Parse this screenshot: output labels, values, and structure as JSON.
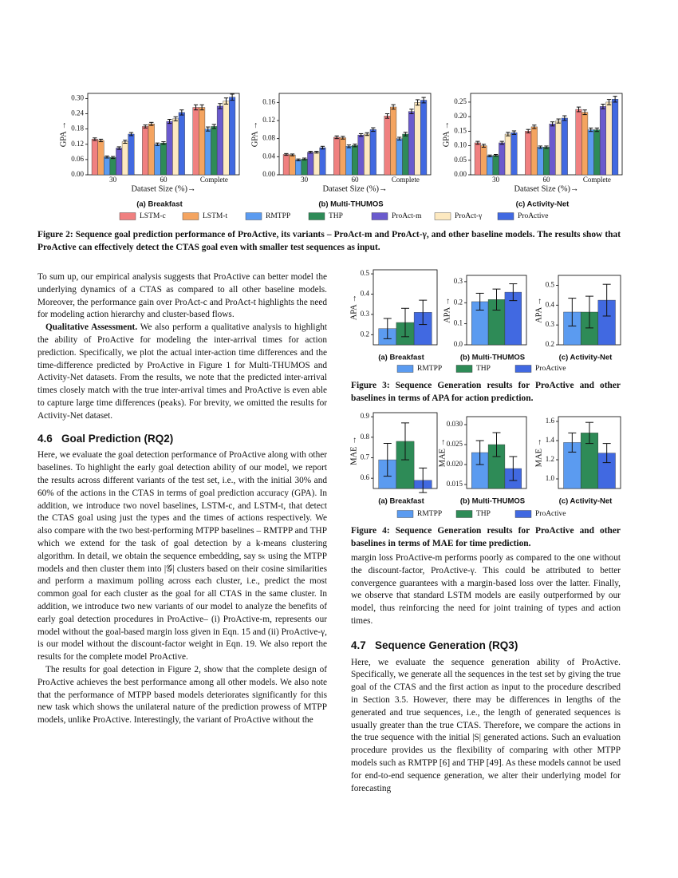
{
  "figure2": {
    "series_names": [
      "LSTM-c",
      "LSTM-t",
      "RMTPP",
      "THP",
      "ProAct-m",
      "ProAct-γ",
      "ProActive"
    ],
    "colors": [
      "#f08080",
      "#f4a460",
      "#5b9bf0",
      "#2e8b57",
      "#6a5acd",
      "#fde9c0",
      "#4169e1"
    ],
    "charts": [
      {
        "type": "bar",
        "subtitle": "(a) Breakfast",
        "ylabel": "GPA →",
        "xlabel": "Dataset Size (%)→",
        "categories": [
          "30",
          "60",
          "Complete"
        ],
        "ylim": [
          0,
          0.32
        ],
        "yticks": [
          {
            "value": 0,
            "label": "0.00"
          },
          {
            "value": 0.06,
            "label": "0.06"
          },
          {
            "value": 0.12,
            "label": "0.12"
          },
          {
            "value": 0.18,
            "label": "0.18"
          },
          {
            "value": 0.24,
            "label": "0.24"
          },
          {
            "value": 0.3,
            "label": "0.30"
          }
        ],
        "series": [
          {
            "values": [
              0.14,
              0.19,
              0.265
            ],
            "errors": [
              0.005,
              0.006,
              0.01
            ]
          },
          {
            "values": [
              0.135,
              0.2,
              0.265
            ],
            "errors": [
              0.005,
              0.006,
              0.01
            ]
          },
          {
            "values": [
              0.07,
              0.12,
              0.18
            ],
            "errors": [
              0.004,
              0.005,
              0.008
            ]
          },
          {
            "values": [
              0.068,
              0.125,
              0.19
            ],
            "errors": [
              0.004,
              0.005,
              0.008
            ]
          },
          {
            "values": [
              0.105,
              0.21,
              0.27
            ],
            "errors": [
              0.005,
              0.008,
              0.01
            ]
          },
          {
            "values": [
              0.13,
              0.22,
              0.29
            ],
            "errors": [
              0.006,
              0.008,
              0.012
            ]
          },
          {
            "values": [
              0.16,
              0.245,
              0.305
            ],
            "errors": [
              0.006,
              0.01,
              0.012
            ]
          }
        ]
      },
      {
        "type": "bar",
        "subtitle": "(b) Multi-THUMOS",
        "ylabel": "GPA →",
        "xlabel": "Dataset Size (%)→",
        "categories": [
          "30",
          "60",
          "Complete"
        ],
        "ylim": [
          0,
          0.18
        ],
        "yticks": [
          {
            "value": 0,
            "label": "0.00"
          },
          {
            "value": 0.04,
            "label": "0.04"
          },
          {
            "value": 0.08,
            "label": "0.08"
          },
          {
            "value": 0.12,
            "label": "0.12"
          },
          {
            "value": 0.16,
            "label": "0.16"
          }
        ],
        "series": [
          {
            "values": [
              0.045,
              0.083,
              0.13
            ],
            "errors": [
              0.002,
              0.003,
              0.005
            ]
          },
          {
            "values": [
              0.044,
              0.082,
              0.15
            ],
            "errors": [
              0.002,
              0.003,
              0.005
            ]
          },
          {
            "values": [
              0.033,
              0.063,
              0.08
            ],
            "errors": [
              0.002,
              0.003,
              0.003
            ]
          },
          {
            "values": [
              0.035,
              0.065,
              0.09
            ],
            "errors": [
              0.002,
              0.003,
              0.004
            ]
          },
          {
            "values": [
              0.05,
              0.088,
              0.14
            ],
            "errors": [
              0.002,
              0.003,
              0.005
            ]
          },
          {
            "values": [
              0.05,
              0.09,
              0.16
            ],
            "errors": [
              0.002,
              0.003,
              0.006
            ]
          },
          {
            "values": [
              0.06,
              0.1,
              0.165
            ],
            "errors": [
              0.003,
              0.004,
              0.006
            ]
          }
        ]
      },
      {
        "type": "bar",
        "subtitle": "(c) Activity-Net",
        "ylabel": "GPA →",
        "xlabel": "Dataset Size (%)→",
        "categories": [
          "30",
          "60",
          "Complete"
        ],
        "ylim": [
          0,
          0.28
        ],
        "yticks": [
          {
            "value": 0,
            "label": "0.00"
          },
          {
            "value": 0.05,
            "label": "0.05"
          },
          {
            "value": 0.1,
            "label": "0.10"
          },
          {
            "value": 0.15,
            "label": "0.15"
          },
          {
            "value": 0.2,
            "label": "0.20"
          },
          {
            "value": 0.25,
            "label": "0.25"
          }
        ],
        "series": [
          {
            "values": [
              0.11,
              0.15,
              0.225
            ],
            "errors": [
              0.005,
              0.006,
              0.008
            ]
          },
          {
            "values": [
              0.1,
              0.165,
              0.215
            ],
            "errors": [
              0.005,
              0.006,
              0.008
            ]
          },
          {
            "values": [
              0.065,
              0.095,
              0.155
            ],
            "errors": [
              0.003,
              0.004,
              0.006
            ]
          },
          {
            "values": [
              0.067,
              0.095,
              0.155
            ],
            "errors": [
              0.003,
              0.004,
              0.006
            ]
          },
          {
            "values": [
              0.11,
              0.175,
              0.235
            ],
            "errors": [
              0.005,
              0.007,
              0.008
            ]
          },
          {
            "values": [
              0.14,
              0.185,
              0.25
            ],
            "errors": [
              0.006,
              0.007,
              0.009
            ]
          },
          {
            "values": [
              0.145,
              0.195,
              0.26
            ],
            "errors": [
              0.006,
              0.008,
              0.01
            ]
          }
        ]
      }
    ],
    "caption": "Figure 2: Sequence goal prediction performance of ProActive, its variants – ProAct-m and ProAct-γ, and other baseline models. The results show that ProActive can effectively detect the CTAS goal even with smaller test sequences as input."
  },
  "figure3": {
    "series_names": [
      "RMTPP",
      "THP",
      "ProActive"
    ],
    "colors": [
      "#5b9bf0",
      "#2e8b57",
      "#4169e1"
    ],
    "charts": [
      {
        "type": "bar",
        "subtitle": "(a) Breakfast",
        "ylabel": "APA →",
        "ylim": [
          0.15,
          0.52
        ],
        "yticks": [
          0.2,
          0.3,
          0.4,
          0.5
        ],
        "values": [
          0.23,
          0.26,
          0.31
        ],
        "errors": [
          0.05,
          0.07,
          0.06
        ]
      },
      {
        "type": "bar",
        "subtitle": "(b) Multi-THUMOS",
        "ylabel": "APA →",
        "ylim": [
          0,
          0.33
        ],
        "yticks": [
          {
            "value": 0,
            "label": "0.0"
          },
          0.1,
          0.2,
          0.3
        ],
        "values": [
          0.205,
          0.215,
          0.25
        ],
        "errors": [
          0.04,
          0.05,
          0.04
        ]
      },
      {
        "type": "bar",
        "subtitle": "(c) Activity-Net",
        "ylabel": "APA →",
        "ylim": [
          0.2,
          0.55
        ],
        "yticks": [
          0.2,
          0.3,
          0.4,
          0.5
        ],
        "values": [
          0.365,
          0.365,
          0.425
        ],
        "errors": [
          0.07,
          0.08,
          0.08
        ]
      }
    ],
    "caption": "Figure 3: Sequence Generation results for ProActive and other baselines in terms of APA for action prediction."
  },
  "figure4": {
    "series_names": [
      "RMTPP",
      "THP",
      "ProActive"
    ],
    "colors": [
      "#5b9bf0",
      "#2e8b57",
      "#4169e1"
    ],
    "charts": [
      {
        "type": "bar",
        "subtitle": "(a) Breakfast",
        "ylabel": "MAE →",
        "ylim": [
          0.55,
          0.92
        ],
        "yticks": [
          0.6,
          0.7,
          0.8,
          0.9
        ],
        "values": [
          0.69,
          0.78,
          0.59
        ],
        "errors": [
          0.08,
          0.09,
          0.06
        ]
      },
      {
        "type": "bar",
        "subtitle": "(b) Multi-THUMOS",
        "ylabel": "MAE →",
        "ylim": [
          0.014,
          0.032
        ],
        "yticks": [
          0.015,
          {
            "value": 0.02,
            "label": "0.020"
          },
          0.025,
          {
            "value": 0.03,
            "label": "0.030"
          }
        ],
        "values": [
          0.023,
          0.025,
          0.019
        ],
        "errors": [
          0.003,
          0.003,
          0.003
        ]
      },
      {
        "type": "bar",
        "subtitle": "(c) Activity-Net",
        "ylabel": "MAE →",
        "ylim": [
          0.9,
          1.65
        ],
        "yticks": [
          {
            "value": 1,
            "label": "1.0"
          },
          1.2,
          1.4,
          1.6
        ],
        "values": [
          1.38,
          1.48,
          1.27
        ],
        "errors": [
          0.1,
          0.11,
          0.1
        ]
      }
    ],
    "caption": "Figure 4: Sequence Generation results for ProActive and other baselines in terms of MAE for time prediction."
  },
  "left_column": {
    "p1": "To sum up, our empirical analysis suggests that ProActive can better model the underlying dynamics of a CTAS as compared to all other baseline models. Moreover, the performance gain over ProAct-c and ProAct-t highlights the need for modeling action hierarchy and cluster-based flows.",
    "p2_lead": "Qualitative Assessment.",
    "p2": "We also perform a qualitative analysis to highlight the ability of ProActive for modeling the inter-arrival times for action prediction. Specifically, we plot the actual inter-action time differences and the time-difference predicted by ProActive in Figure 1 for Multi-THUMOS and Activity-Net datasets. From the results, we note that the predicted inter-arrival times closely match with the true inter-arrival times and ProActive is even able to capture large time differences (peaks). For brevity, we omitted the results for Activity-Net dataset.",
    "heading": "4.6   Goal Prediction (RQ2)",
    "p3": "Here, we evaluate the goal detection performance of ProActive along with other baselines. To highlight the early goal detection ability of our model, we report the results across different variants of the test set, i.e., with the initial 30% and 60% of the actions in the CTAS in terms of goal prediction accuracy (GPA). In addition, we introduce two novel baselines, LSTM-c, and LSTM-t, that detect the CTAS goal using just the types and the times of actions respectively. We also compare with the two best-performing MTPP baselines – RMTPP and THP which we extend for the task of goal detection by a k-means clustering algorithm. In detail, we obtain the sequence embedding, say sₖ using the MTPP models and then cluster them into |𝒢| clusters based on their cosine similarities and perform a maximum polling across each cluster, i.e., predict the most common goal for each cluster as the goal for all CTAS in the same cluster. In addition, we introduce two new variants of our model to analyze the benefits of early goal detection procedures in ProActive– (i) ProActive-m, represents our model without the goal-based margin loss given in Eqn. 15 and (ii) ProActive-γ, is our model without the discount-factor weight in Eqn. 19. We also report the results for the complete model ProActive.",
    "p4": "The results for goal detection in Figure 2, show that the complete design of ProActive achieves the best performance among all other models. We also note that the performance of MTPP based models deteriorates significantly for this new task which shows the unilateral nature of the prediction prowess of MTPP models, unlike ProActive. Interestingly, the variant of ProActive without the"
  },
  "right_column": {
    "p1": "margin loss ProActive-m performs poorly as compared to the one without the discount-factor, ProActive-γ. This could be attributed to better convergence guarantees with a margin-based loss over the latter. Finally, we observe that standard LSTM models are easily outperformed by our model, thus reinforcing the need for joint training of types and action times.",
    "heading": "4.7   Sequence Generation (RQ3)",
    "p2": "Here, we evaluate the sequence generation ability of ProActive. Specifically, we generate all the sequences in the test set by giving the true goal of the CTAS and the first action as input to the procedure described in Section 3.5. However, there may be differences in lengths of the generated and true sequences, i.e., the length of generated sequences is usually greater than the true CTAS. Therefore, we compare the actions in the true sequence with the initial |S| generated actions. Such an evaluation procedure provides us the flexibility of comparing with other MTPP models such as RMTPP [6] and THP [49]. As these models cannot be used for end-to-end sequence generation, we alter their underlying model for forecasting"
  }
}
